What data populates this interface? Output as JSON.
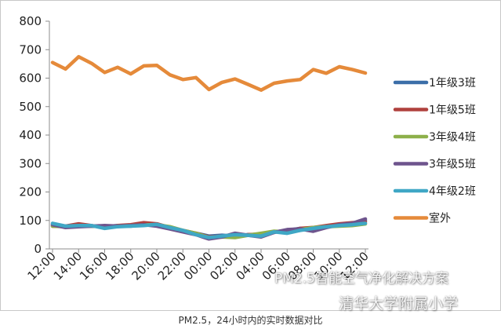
{
  "chart_data": {
    "type": "line",
    "title": "",
    "xlabel": "",
    "ylabel": "",
    "ylim": [
      0,
      800
    ],
    "yticks": [
      0,
      100,
      200,
      300,
      400,
      500,
      600,
      700,
      800
    ],
    "grid": false,
    "legend_position": "right",
    "categories": [
      "12:00",
      "13:00",
      "14:00",
      "15:00",
      "16:00",
      "17:00",
      "18:00",
      "19:00",
      "20:00",
      "21:00",
      "22:00",
      "23:00",
      "00:00",
      "01:00",
      "02:00",
      "03:00",
      "04:00",
      "05:00",
      "06:00",
      "07:00",
      "08:00",
      "09:00",
      "10:00",
      "11:00",
      "12:00"
    ],
    "xtick_labels": [
      "12:00",
      "14:00",
      "16:00",
      "18:00",
      "20:00",
      "22:00",
      "00:00",
      "02:00",
      "04:00",
      "06:00",
      "08:00",
      "10:00",
      "12:00"
    ],
    "series": [
      {
        "name": "1年级3班",
        "color": "#3b6ea8",
        "values": [
          85,
          80,
          82,
          80,
          78,
          82,
          80,
          86,
          85,
          72,
          62,
          55,
          45,
          48,
          45,
          50,
          50,
          60,
          65,
          72,
          70,
          80,
          85,
          90,
          100
        ]
      },
      {
        "name": "1年级5班",
        "color": "#b0413e",
        "values": [
          80,
          80,
          88,
          82,
          75,
          82,
          85,
          92,
          88,
          75,
          65,
          55,
          42,
          45,
          42,
          50,
          52,
          60,
          62,
          72,
          75,
          82,
          88,
          92,
          95
        ]
      },
      {
        "name": "3年级4班",
        "color": "#8db04a",
        "values": [
          80,
          78,
          80,
          80,
          78,
          80,
          82,
          85,
          85,
          78,
          65,
          55,
          40,
          42,
          40,
          48,
          55,
          62,
          60,
          68,
          75,
          78,
          80,
          82,
          88
        ]
      },
      {
        "name": "3年级5班",
        "color": "#6e548d",
        "values": [
          85,
          75,
          78,
          80,
          82,
          80,
          82,
          85,
          80,
          70,
          60,
          50,
          35,
          42,
          55,
          48,
          42,
          58,
          68,
          70,
          62,
          75,
          85,
          90,
          105
        ]
      },
      {
        "name": "4年级2班",
        "color": "#3fa7c5",
        "values": [
          90,
          80,
          82,
          82,
          72,
          78,
          80,
          82,
          86,
          75,
          65,
          50,
          40,
          45,
          50,
          48,
          45,
          60,
          55,
          65,
          72,
          78,
          82,
          85,
          90
        ]
      },
      {
        "name": "室外",
        "color": "#e58a3a",
        "values": [
          655,
          632,
          675,
          652,
          620,
          638,
          615,
          643,
          645,
          612,
          595,
          602,
          560,
          585,
          597,
          578,
          558,
          582,
          590,
          595,
          630,
          617,
          640,
          630,
          618
        ]
      }
    ]
  },
  "caption": "PM2.5，24小时内的实时数据对比",
  "watermark_top": "PM2.5智能空气净化解决方案",
  "watermark_bottom": "清华大学附属小学"
}
